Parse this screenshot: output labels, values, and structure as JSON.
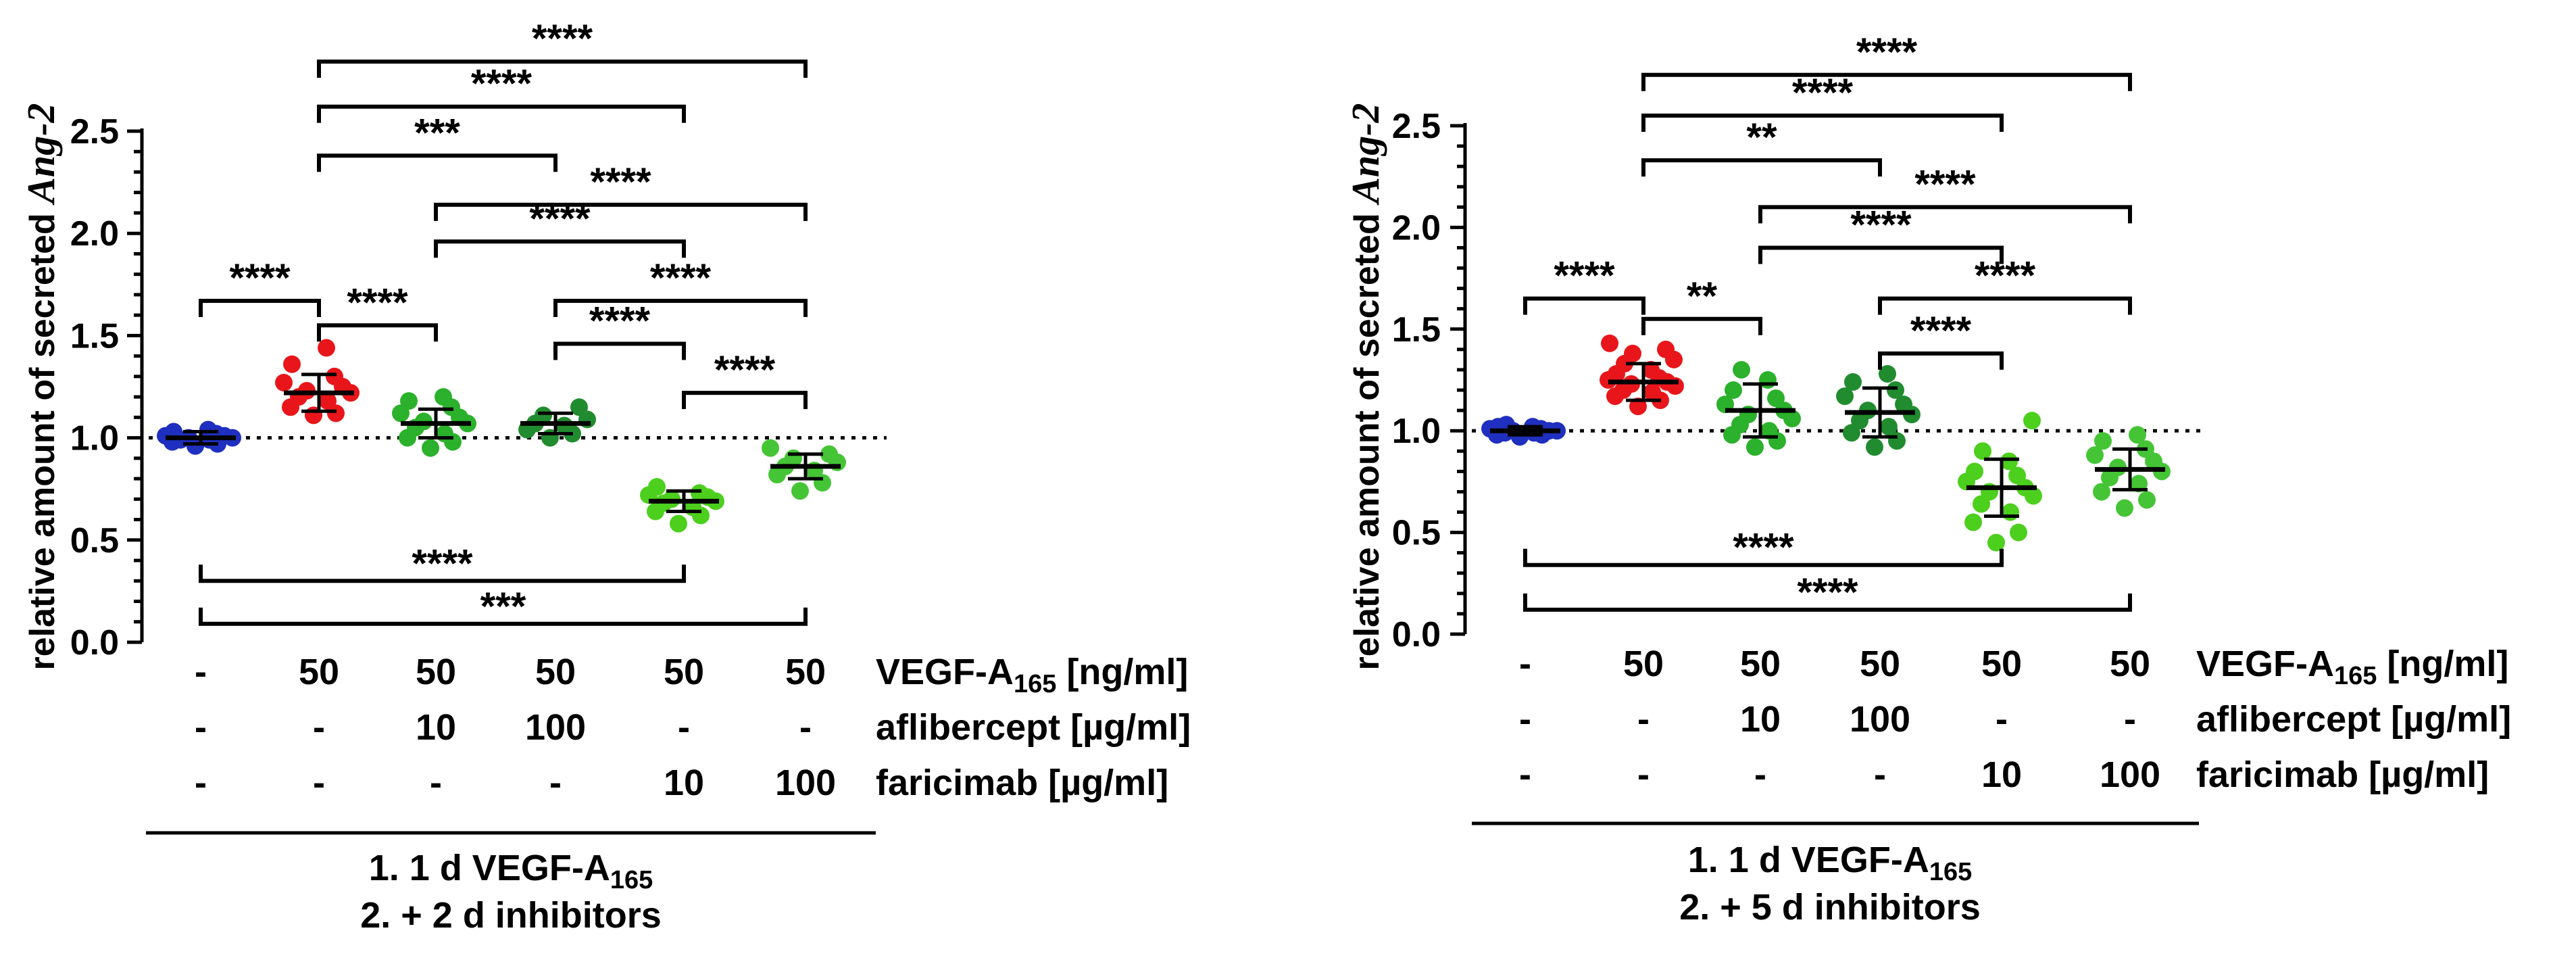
{
  "chart_data": [
    {
      "type": "scatter",
      "ylabel_prefix": "relative amount of  secreted ",
      "ylabel_gene": "Ang-2",
      "yticks": [
        "0.0",
        "0.5",
        "1.0",
        "1.5",
        "2.0",
        "2.5"
      ],
      "ylim": [
        0,
        2.5
      ],
      "reference_line": 1.0,
      "rows": [
        {
          "label": "VEGF-A",
          "subscript": "165",
          "unit": " [ng/ml]",
          "values": [
            "-",
            "50",
            "50",
            "50",
            "50",
            "50"
          ]
        },
        {
          "label": "aflibercept [µg/ml]",
          "values": [
            "-",
            "-",
            "10",
            "100",
            "-",
            "-"
          ]
        },
        {
          "label": "faricimab [µg/ml]",
          "values": [
            "-",
            "-",
            "-",
            "-",
            "10",
            "100"
          ]
        }
      ],
      "footer_line1": "1. 1 d VEGF-A",
      "footer_line1_sub": "165",
      "footer_line2": "2. + 2 d inhibitors",
      "groups": [
        {
          "color": "#1f2fbf",
          "mean": 1.0,
          "sd": 0.03,
          "points": [
            0.96,
            0.97,
            0.98,
            0.99,
            0.99,
            1.0,
            1.0,
            1.01,
            1.01,
            1.02,
            1.03,
            1.04
          ]
        },
        {
          "color": "#e8161b",
          "mean": 1.22,
          "sd": 0.09,
          "points": [
            1.11,
            1.12,
            1.15,
            1.18,
            1.2,
            1.22,
            1.23,
            1.25,
            1.27,
            1.3,
            1.36,
            1.44
          ]
        },
        {
          "color": "#2bb12b",
          "mean": 1.07,
          "sd": 0.07,
          "points": [
            0.95,
            0.98,
            1.0,
            1.02,
            1.05,
            1.07,
            1.08,
            1.1,
            1.12,
            1.15,
            1.18,
            1.2
          ]
        },
        {
          "color": "#218c2f",
          "mean": 1.07,
          "sd": 0.05,
          "points": [
            1.0,
            1.02,
            1.04,
            1.06,
            1.07,
            1.09,
            1.11,
            1.15
          ]
        },
        {
          "color": "#4ccf1d",
          "mean": 0.69,
          "sd": 0.05,
          "points": [
            0.58,
            0.62,
            0.64,
            0.66,
            0.68,
            0.69,
            0.7,
            0.71,
            0.72,
            0.73,
            0.76
          ]
        },
        {
          "color": "#45c536",
          "mean": 0.86,
          "sd": 0.06,
          "points": [
            0.74,
            0.78,
            0.82,
            0.84,
            0.86,
            0.88,
            0.9,
            0.92,
            0.95
          ]
        }
      ],
      "brackets": [
        {
          "from": 0,
          "to": 1,
          "y": 1.67,
          "label": "****"
        },
        {
          "from": 1,
          "to": 2,
          "y": 1.55,
          "label": "****"
        },
        {
          "from": 2,
          "to": 5,
          "y": 2.14,
          "label": "****"
        },
        {
          "from": 2,
          "to": 4,
          "y": 1.96,
          "label": "****"
        },
        {
          "from": 1,
          "to": 3,
          "y": 2.38,
          "label": "***"
        },
        {
          "from": 1,
          "to": 4,
          "y": 2.62,
          "label": "****"
        },
        {
          "from": 1,
          "to": 5,
          "y": 2.84,
          "label": "****"
        },
        {
          "from": 3,
          "to": 5,
          "y": 1.67,
          "label": "****"
        },
        {
          "from": 3,
          "to": 4,
          "y": 1.46,
          "label": "****"
        },
        {
          "from": 4,
          "to": 5,
          "y": 1.22,
          "label": "****"
        },
        {
          "from": 0,
          "to": 4,
          "y": 0.3,
          "label": "****",
          "below": true
        },
        {
          "from": 0,
          "to": 5,
          "y": 0.09,
          "label": "***",
          "below": true
        }
      ]
    },
    {
      "type": "scatter",
      "ylabel_prefix": "relative amount of  secreted ",
      "ylabel_gene": "Ang-2",
      "yticks": [
        "0.0",
        "0.5",
        "1.0",
        "1.5",
        "2.0",
        "2.5"
      ],
      "ylim": [
        0,
        2.5
      ],
      "reference_line": 1.0,
      "rows": [
        {
          "label": "VEGF-A",
          "subscript": "165",
          "unit": " [ng/ml]",
          "values": [
            "-",
            "50",
            "50",
            "50",
            "50",
            "50"
          ]
        },
        {
          "label": "aflibercept [µg/ml]",
          "values": [
            "-",
            "-",
            "10",
            "100",
            "-",
            "-"
          ]
        },
        {
          "label": "faricimab [µg/ml]",
          "values": [
            "-",
            "-",
            "-",
            "-",
            "10",
            "100"
          ]
        }
      ],
      "footer_line1": "1. 1 d VEGF-A",
      "footer_line1_sub": "165",
      "footer_line2": "2. + 5 d inhibitors",
      "groups": [
        {
          "color": "#1f2fbf",
          "mean": 1.0,
          "sd": 0.02,
          "points": [
            0.97,
            0.98,
            0.98,
            0.99,
            0.99,
            1.0,
            1.0,
            1.0,
            1.01,
            1.01,
            1.02,
            1.02,
            1.03
          ]
        },
        {
          "color": "#e8161b",
          "mean": 1.24,
          "sd": 0.09,
          "points": [
            1.12,
            1.15,
            1.17,
            1.19,
            1.2,
            1.22,
            1.23,
            1.24,
            1.25,
            1.26,
            1.28,
            1.3,
            1.33,
            1.35,
            1.38,
            1.4,
            1.43
          ]
        },
        {
          "color": "#2bb12b",
          "mean": 1.1,
          "sd": 0.13,
          "points": [
            0.92,
            0.95,
            0.98,
            1.0,
            1.03,
            1.06,
            1.08,
            1.1,
            1.13,
            1.16,
            1.2,
            1.25,
            1.3
          ]
        },
        {
          "color": "#218c2f",
          "mean": 1.09,
          "sd": 0.12,
          "points": [
            0.92,
            0.95,
            0.99,
            1.02,
            1.05,
            1.08,
            1.1,
            1.13,
            1.17,
            1.2,
            1.24,
            1.28
          ]
        },
        {
          "color": "#4ccf1d",
          "mean": 0.72,
          "sd": 0.14,
          "points": [
            0.45,
            0.5,
            0.55,
            0.6,
            0.64,
            0.68,
            0.7,
            0.72,
            0.75,
            0.78,
            0.8,
            0.85,
            0.9,
            1.05
          ]
        },
        {
          "color": "#45c536",
          "mean": 0.81,
          "sd": 0.1,
          "points": [
            0.62,
            0.66,
            0.7,
            0.74,
            0.77,
            0.8,
            0.82,
            0.85,
            0.88,
            0.91,
            0.95,
            0.98
          ]
        }
      ],
      "brackets": [
        {
          "from": 0,
          "to": 1,
          "y": 1.65,
          "label": "****"
        },
        {
          "from": 1,
          "to": 2,
          "y": 1.55,
          "label": "**"
        },
        {
          "from": 2,
          "to": 5,
          "y": 2.1,
          "label": "****"
        },
        {
          "from": 2,
          "to": 4,
          "y": 1.9,
          "label": "****"
        },
        {
          "from": 1,
          "to": 3,
          "y": 2.33,
          "label": "**"
        },
        {
          "from": 1,
          "to": 4,
          "y": 2.55,
          "label": "****"
        },
        {
          "from": 1,
          "to": 5,
          "y": 2.75,
          "label": "****"
        },
        {
          "from": 3,
          "to": 5,
          "y": 1.65,
          "label": "****"
        },
        {
          "from": 3,
          "to": 4,
          "y": 1.38,
          "label": "****"
        },
        {
          "from": 0,
          "to": 4,
          "y": 0.34,
          "label": "****",
          "below": true
        },
        {
          "from": 0,
          "to": 5,
          "y": 0.12,
          "label": "****",
          "below": true
        }
      ]
    }
  ]
}
